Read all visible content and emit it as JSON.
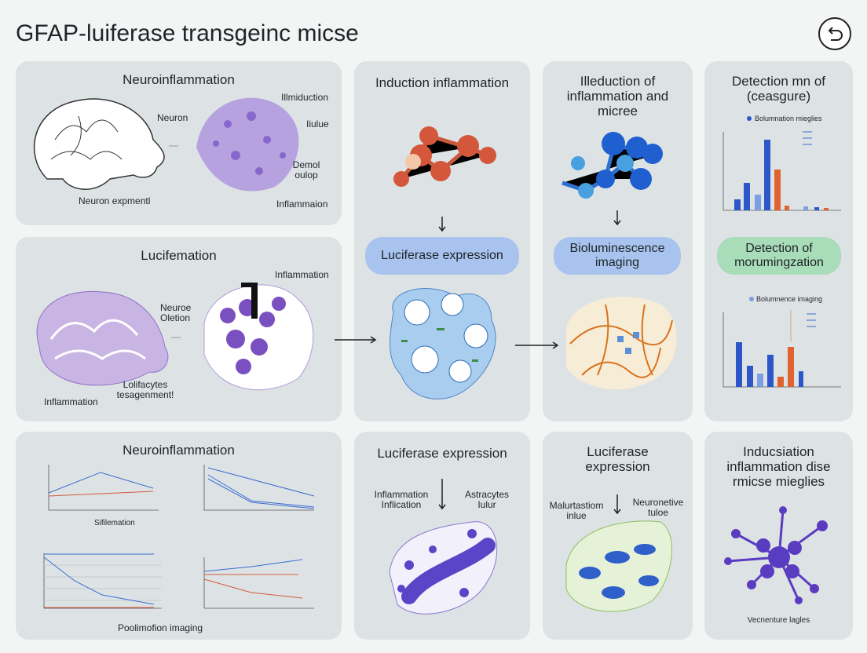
{
  "header": {
    "title": "GFAP-luiferase transgeinc micse"
  },
  "panels": [
    {
      "title": "Neuroinflammation",
      "labels": [
        "Neuron",
        "Neuron expmentl",
        "Illmiduction",
        "Iiulue",
        "Demol oulop",
        "Inflammaion"
      ]
    },
    {
      "title": "Lucifemation",
      "labels": [
        "Inflammation",
        "Neuroe Oletion",
        "Lolifacytes tesagenment!",
        "Inflammation"
      ]
    },
    {
      "title": "Induction inflammation",
      "pill": "Luciferase expression"
    },
    {
      "title": "Illeduction of inflammation and micree",
      "pill": "Bioluminescence imaging"
    },
    {
      "title": "Detection mn of (ceasgure)",
      "legend": "Bolumnation mieglies",
      "pill": "Detection of morumingzation",
      "legend2": "Bolumnence imaging"
    },
    {
      "title": "Neuroinflammation",
      "label": "Sifilemation",
      "caption": "Poolimofion imaging"
    },
    {
      "title": "Luciferase expression",
      "labels": [
        "Inflammation Inflication",
        "Astracytes Iulur"
      ]
    },
    {
      "title": "Luciferase expression",
      "labels": [
        "Malurtastiom inlue",
        "Neuronetive tuloe"
      ]
    },
    {
      "title": "Inducsiation inflammation dise rmicse mieglies",
      "caption": "Vecnenture lagles"
    }
  ]
}
